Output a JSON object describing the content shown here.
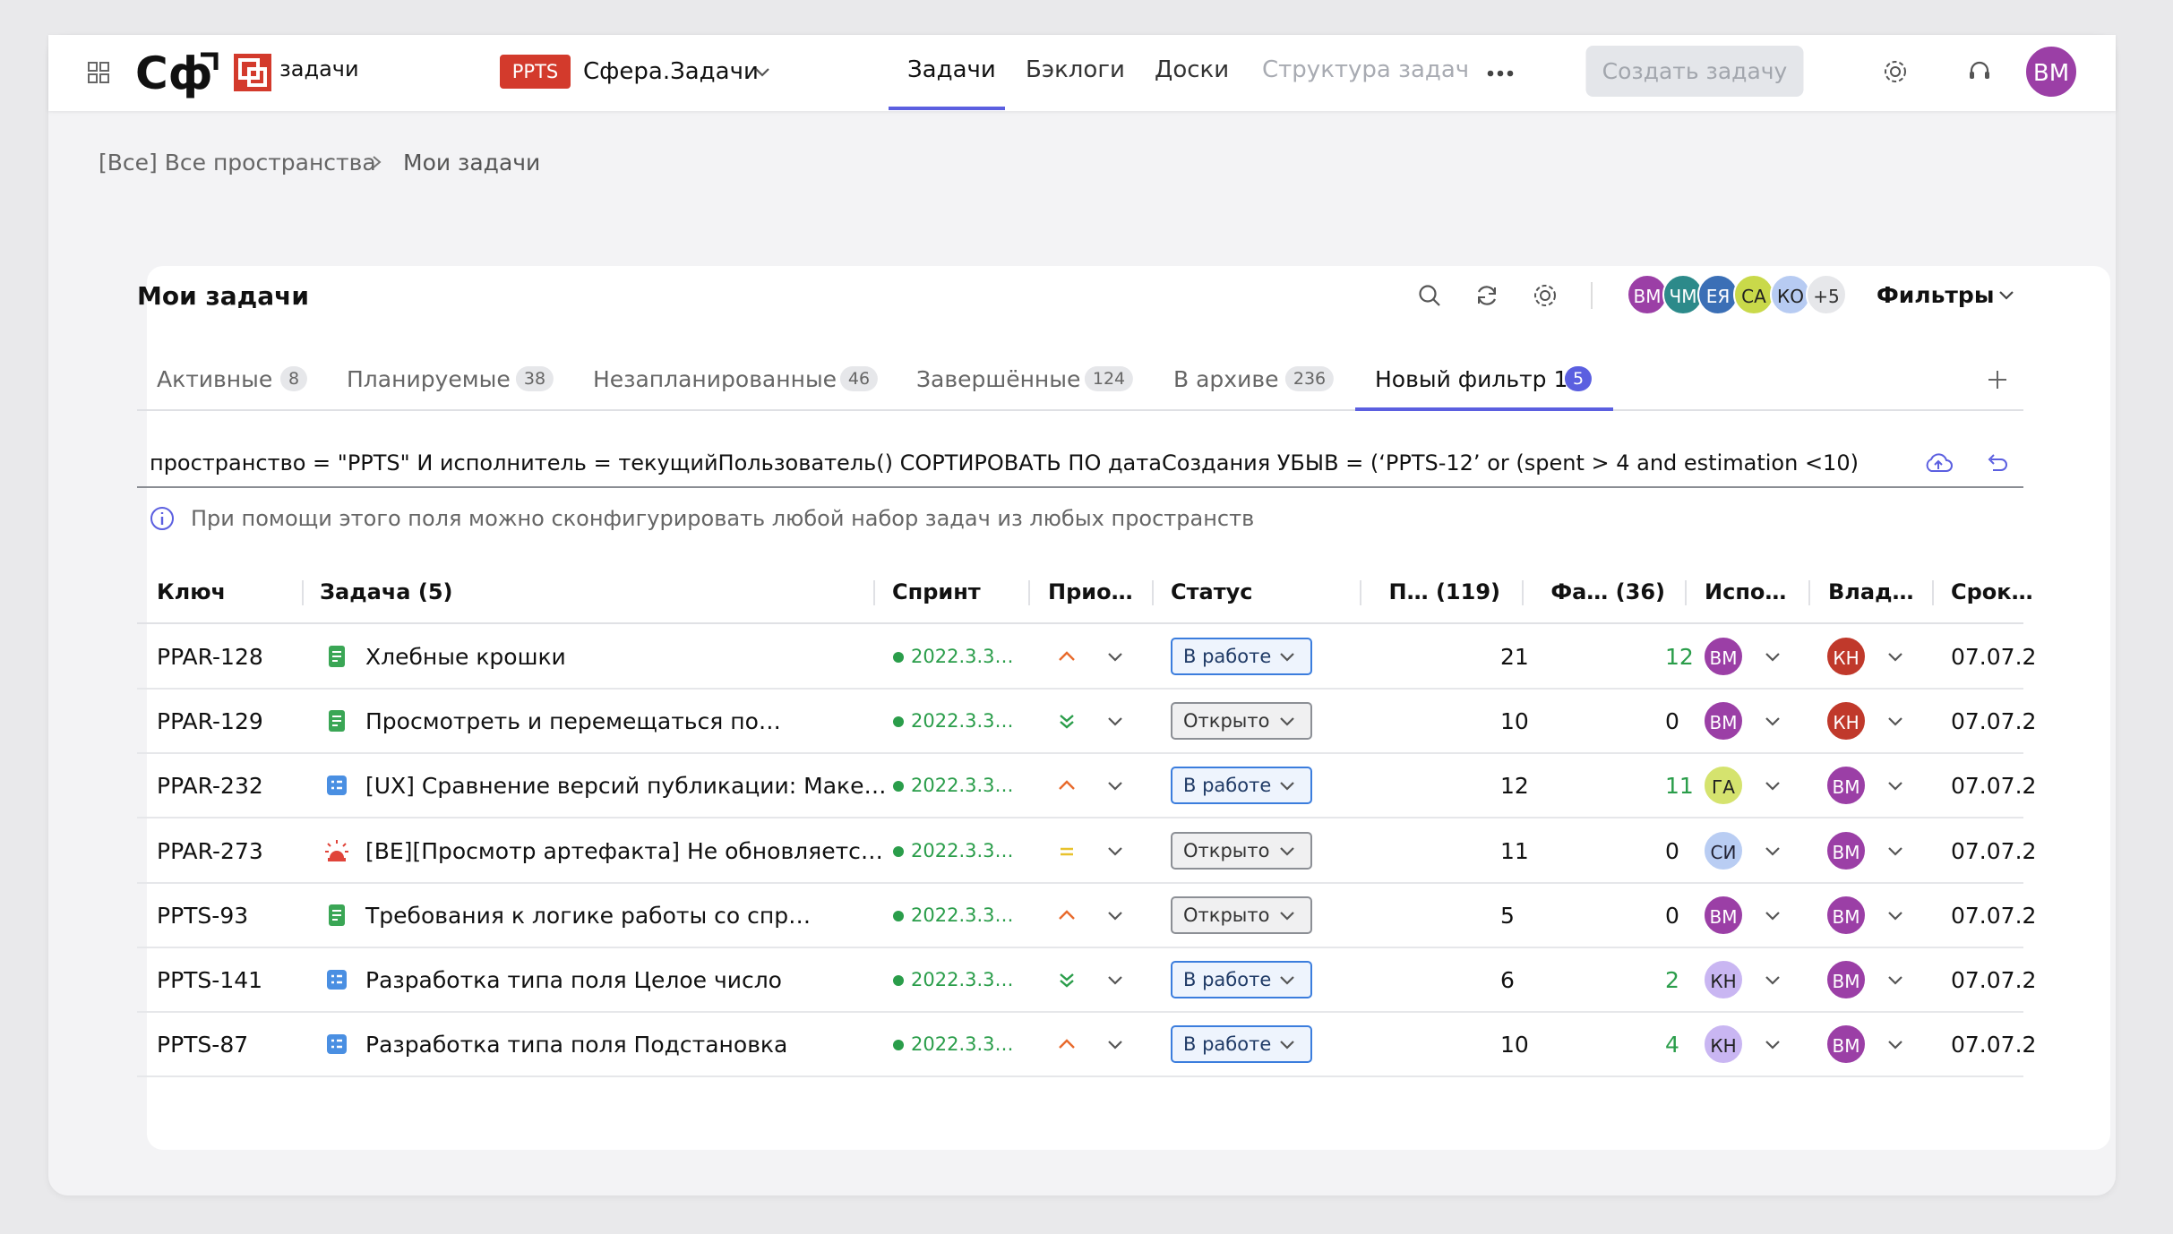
{
  "header": {
    "logo": "Сф",
    "app": "задачи",
    "project_code": "PPTS",
    "project": "Сфера.Задачи",
    "nav": [
      "Задачи",
      "Бэклоги",
      "Доски",
      "Структура задач"
    ],
    "create_button": "Создать задачу",
    "user": "ВМ"
  },
  "breadcrumbs": [
    "[Все] Все пространства",
    "Мои задачи"
  ],
  "card": {
    "title": "Мои задачи",
    "members": [
      "ВМ",
      "ЧМ",
      "ЕЯ",
      "СА",
      "КО",
      "+5"
    ],
    "filters": "Фильтры"
  },
  "tabs": [
    {
      "label": "Активные",
      "count": 8
    },
    {
      "label": "Планируемые",
      "count": 38
    },
    {
      "label": "Незапланированные",
      "count": 46
    },
    {
      "label": "Завершённые",
      "count": 124
    },
    {
      "label": "В архиве",
      "count": 236
    },
    {
      "label": "Новый фильтр 1",
      "count": 5
    }
  ],
  "query": "пространство = \"PPTS\" И исполнитель = текущийПользователь() СОРТИРОВАТЬ ПО датаСоздания УБЫВ  = (‘PPTS-12’ or (spent > 4 and estimation <10)",
  "hint": "При помощи этого поля можно сконфигурировать любой набор задач из любых пространств",
  "table": {
    "columns": [
      "Ключ",
      "Задача (5)",
      "Спринт",
      "Прио…",
      "Статус",
      "П… (119)",
      "Фа… (36)",
      "Испо…",
      "Влад…",
      "Срок…"
    ],
    "rows": [
      [
        "PPAR-128",
        "Хлебные крошки",
        "2022.3.3…",
        "В работе",
        21,
        12,
        "ВМ",
        "КН",
        "07.07.2"
      ],
      [
        "PPAR-129",
        "Просмотреть и перемещаться по…",
        "2022.3.3…",
        "Открыто",
        10,
        0,
        "ВМ",
        "КН",
        "07.07.2"
      ],
      [
        "PPAR-232",
        "[UX] Сравнение версий публикации: Маке…",
        "2022.3.3…",
        "В работе",
        12,
        11,
        "ГА",
        "ВМ",
        "07.07.2"
      ],
      [
        "PPAR-273",
        "[BE][Просмотр артефакта] Не обновляетс…",
        "2022.3.3…",
        "Открыто",
        11,
        0,
        "СИ",
        "ВМ",
        "07.07.2"
      ],
      [
        "PPTS-93",
        "Требования к логике работы со спр…",
        "2022.3.3…",
        "Открыто",
        5,
        0,
        "ВМ",
        "ВМ",
        "07.07.2"
      ],
      [
        "PPTS-141",
        "Разработка типа поля Целое число",
        "2022.3.3…",
        "В работе",
        6,
        2,
        "КН",
        "ВМ",
        "07.07.2"
      ],
      [
        "PPTS-87",
        "Разработка типа поля Подстановка",
        "2022.3.3…",
        "В работе",
        10,
        4,
        "КН",
        "ВМ",
        "07.07.2"
      ]
    ]
  }
}
